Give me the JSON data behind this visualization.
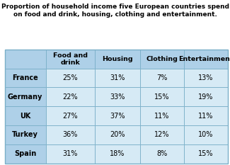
{
  "title": "Proportion of household income five European countries spend\non food and drink, housing, clothing and entertainment.",
  "columns": [
    "",
    "Food and\ndrink",
    "Housing",
    "Clothing",
    "Entertainment"
  ],
  "rows": [
    [
      "France",
      "25%",
      "31%",
      "7%",
      "13%"
    ],
    [
      "Germany",
      "22%",
      "33%",
      "15%",
      "19%"
    ],
    [
      "UK",
      "27%",
      "37%",
      "11%",
      "11%"
    ],
    [
      "Turkey",
      "36%",
      "20%",
      "12%",
      "10%"
    ],
    [
      "Spain",
      "31%",
      "18%",
      "8%",
      "15%"
    ]
  ],
  "header_bg": "#aed0e8",
  "row_label_bg": "#aed0e8",
  "data_bg": "#d6eaf5",
  "border_color": "#7aafc8",
  "title_fontsize": 6.5,
  "header_fontsize": 6.8,
  "data_fontsize": 7.0,
  "fig_bg": "#ffffff",
  "col_weights": [
    0.155,
    0.185,
    0.17,
    0.165,
    0.165
  ]
}
